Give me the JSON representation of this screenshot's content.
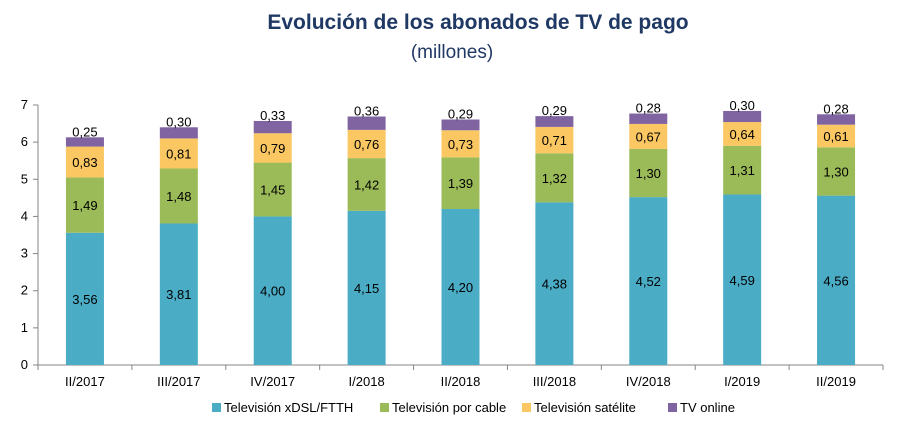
{
  "chart_data": {
    "type": "bar",
    "stacked": true,
    "title": "Evolución de los abonados de TV de pago",
    "subtitle": "(millones)",
    "xlabel": "",
    "ylabel": "",
    "ylim": [
      0,
      7
    ],
    "yticks": [
      "0",
      "1",
      "2",
      "3",
      "4",
      "5",
      "6",
      "7"
    ],
    "grid": false,
    "legend_position": "bottom",
    "categories": [
      "II/2017",
      "III/2017",
      "IV/2017",
      "I/2018",
      "II/2018",
      "III/2018",
      "IV/2018",
      "I/2019",
      "II/2019"
    ],
    "series": [
      {
        "name": "Televisión xDSL/FTTH",
        "color": "#4bacc6",
        "values": [
          3.56,
          3.81,
          4.0,
          4.15,
          4.2,
          4.38,
          4.52,
          4.59,
          4.56
        ],
        "labels": [
          "3,56",
          "3,81",
          "4,00",
          "4,15",
          "4,20",
          "4,38",
          "4,52",
          "4,59",
          "4,56"
        ]
      },
      {
        "name": "Televisión por cable",
        "color": "#9bbb59",
        "values": [
          1.49,
          1.48,
          1.45,
          1.42,
          1.39,
          1.32,
          1.3,
          1.31,
          1.3
        ],
        "labels": [
          "1,49",
          "1,48",
          "1,45",
          "1,42",
          "1,39",
          "1,32",
          "1,30",
          "1,31",
          "1,30"
        ]
      },
      {
        "name": "Televisión satélite",
        "color": "#fac762",
        "values": [
          0.83,
          0.81,
          0.79,
          0.76,
          0.73,
          0.71,
          0.67,
          0.64,
          0.61
        ],
        "labels": [
          "0,83",
          "0,81",
          "0,79",
          "0,76",
          "0,73",
          "0,71",
          "0,67",
          "0,64",
          "0,61"
        ]
      },
      {
        "name": "TV online",
        "color": "#8064a2",
        "values": [
          0.25,
          0.3,
          0.33,
          0.36,
          0.29,
          0.29,
          0.28,
          0.3,
          0.28
        ],
        "labels": [
          "0,25",
          "0,30",
          "0,33",
          "0,36",
          "0,29",
          "0,29",
          "0,28",
          "0,30",
          "0,28"
        ]
      }
    ]
  }
}
